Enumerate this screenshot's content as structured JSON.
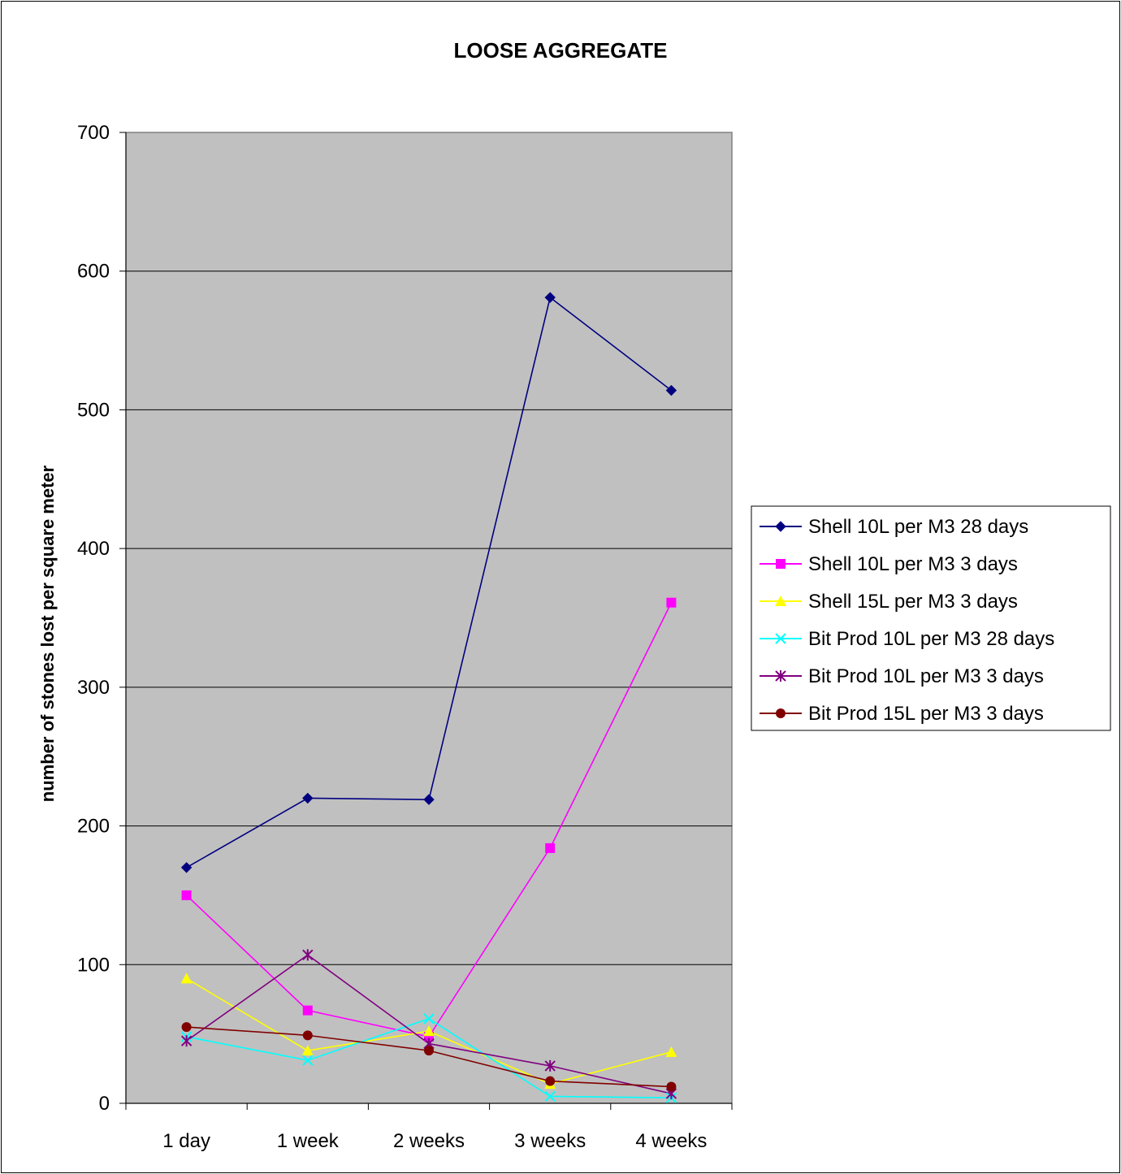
{
  "chart_data": {
    "type": "line",
    "title": "LOOSE AGGREGATE",
    "xlabel": "",
    "ylabel": "number of stones lost per square meter",
    "ylim": [
      0,
      700
    ],
    "yticks": [
      0,
      100,
      200,
      300,
      400,
      500,
      600,
      700
    ],
    "grid": true,
    "plot_background": "#c0c0c0",
    "legend_position": "right",
    "categories": [
      "1 day",
      "1 week",
      "2 weeks",
      "3 weeks",
      "4 weeks"
    ],
    "series": [
      {
        "name": "Shell 10L per M3 28 days",
        "color": "#000080",
        "marker": "diamond",
        "values": [
          170,
          220,
          219,
          581,
          514
        ]
      },
      {
        "name": "Shell 10L per M3 3 days",
        "color": "#ff00ff",
        "marker": "square",
        "values": [
          150,
          67,
          48,
          184,
          361
        ]
      },
      {
        "name": "Shell 15L per M3 3 days",
        "color": "#ffff00",
        "marker": "triangle",
        "values": [
          90,
          38,
          52,
          14,
          37
        ]
      },
      {
        "name": "Bit Prod 10L per M3 28 days",
        "color": "#00ffff",
        "marker": "x",
        "values": [
          48,
          31,
          61,
          5,
          4
        ]
      },
      {
        "name": "Bit Prod 10L per M3 3 days",
        "color": "#800080",
        "marker": "star",
        "values": [
          45,
          107,
          43,
          27,
          7
        ]
      },
      {
        "name": "Bit Prod 15L per M3 3 days",
        "color": "#800000",
        "marker": "circle",
        "values": [
          55,
          49,
          38,
          16,
          12
        ]
      }
    ]
  }
}
